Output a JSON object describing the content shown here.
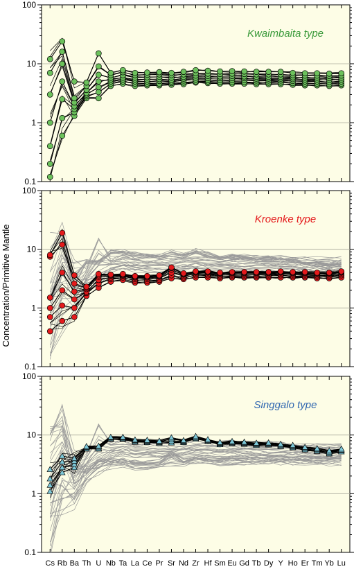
{
  "chart_data": {
    "type": "line",
    "ylabel": "Concentration/Primitive Mantle",
    "yscale": "log",
    "ylim": [
      0.1,
      100
    ],
    "ytick_labels": [
      "0.1",
      "1",
      "10",
      "100"
    ],
    "categories": [
      "Cs",
      "Rb",
      "Ba",
      "Th",
      "U",
      "Nb",
      "Ta",
      "La",
      "Ce",
      "Pr",
      "Sr",
      "Nd",
      "Zr",
      "Hf",
      "Sm",
      "Eu",
      "Gd",
      "Tb",
      "Dy",
      "Y",
      "Ho",
      "Er",
      "Tm",
      "Yb",
      "Lu"
    ],
    "background_color": "#fdfde6",
    "grid": "horizontal",
    "panels": [
      {
        "title": "Kwaimbaita type",
        "title_color": "#3a9a3a",
        "marker": "circle",
        "marker_color": "#6cc15c",
        "series": [
          {
            "values": [
              0.12,
              0.6,
              1.3,
              2.6,
              2.6,
              4.2,
              4.6,
              4.2,
              4.3,
              4.3,
              4.4,
              4.5,
              4.8,
              4.7,
              4.6,
              4.6,
              4.6,
              4.5,
              4.5,
              4.5,
              4.4,
              4.3,
              4.3,
              4.2,
              4.3
            ]
          },
          {
            "values": [
              0.2,
              1.2,
              1.5,
              2.8,
              3.3,
              4.6,
              5.0,
              4.6,
              4.6,
              4.6,
              4.7,
              4.8,
              5.0,
              5.0,
              4.9,
              4.9,
              4.9,
              4.8,
              4.8,
              4.8,
              4.7,
              4.6,
              4.6,
              4.5,
              4.6
            ]
          },
          {
            "values": [
              0.4,
              2.5,
              1.7,
              3.0,
              4.0,
              5.0,
              5.4,
              5.0,
              5.0,
              5.1,
              5.0,
              5.2,
              5.4,
              5.3,
              5.3,
              5.3,
              5.3,
              5.2,
              5.2,
              5.2,
              5.1,
              5.0,
              5.0,
              4.9,
              5.0
            ]
          },
          {
            "values": [
              1.0,
              5.0,
              1.9,
              3.2,
              5.0,
              5.4,
              5.8,
              5.4,
              5.4,
              5.5,
              5.3,
              5.6,
              5.8,
              5.7,
              5.7,
              5.7,
              5.7,
              5.6,
              5.6,
              5.6,
              5.5,
              5.4,
              5.4,
              5.3,
              5.4
            ]
          },
          {
            "values": [
              3.0,
              10.0,
              2.2,
              3.6,
              6.5,
              5.8,
              6.4,
              5.8,
              5.9,
              6.0,
              5.8,
              6.0,
              6.3,
              6.2,
              6.1,
              6.2,
              6.1,
              6.0,
              6.0,
              6.0,
              5.9,
              5.8,
              5.8,
              5.7,
              5.8
            ]
          },
          {
            "values": [
              7.0,
              16.0,
              2.6,
              4.2,
              9.0,
              6.4,
              7.2,
              6.4,
              6.5,
              6.6,
              6.4,
              6.6,
              6.9,
              6.8,
              6.7,
              6.8,
              6.7,
              6.6,
              6.6,
              6.6,
              6.4,
              6.3,
              6.3,
              6.2,
              6.3
            ]
          },
          {
            "values": [
              12.0,
              24.0,
              5.0,
              4.8,
              15.0,
              7.0,
              7.8,
              7.0,
              7.1,
              7.2,
              7.0,
              7.3,
              7.8,
              7.6,
              7.4,
              7.5,
              7.4,
              7.3,
              7.3,
              7.3,
              7.0,
              6.9,
              6.9,
              6.8,
              6.9
            ]
          }
        ]
      },
      {
        "title": "Kroenke type",
        "title_color": "#e41a1c",
        "marker": "circle",
        "marker_color": "#e41a1c",
        "series": [
          {
            "values": [
              0.4,
              0.6,
              0.7,
              1.6,
              2.2,
              2.8,
              3.0,
              2.7,
              2.7,
              2.8,
              3.2,
              3.1,
              3.3,
              3.3,
              3.2,
              3.3,
              3.3,
              3.3,
              3.3,
              3.3,
              3.3,
              3.3,
              3.2,
              3.2,
              3.3
            ]
          },
          {
            "values": [
              0.7,
              1.1,
              1.0,
              1.8,
              2.6,
              3.1,
              3.3,
              2.9,
              2.9,
              3.0,
              3.6,
              3.3,
              3.6,
              3.6,
              3.4,
              3.5,
              3.5,
              3.5,
              3.5,
              3.6,
              3.5,
              3.5,
              3.4,
              3.4,
              3.6
            ]
          },
          {
            "values": [
              1.0,
              2.0,
              1.4,
              1.9,
              3.0,
              3.3,
              3.5,
              3.1,
              3.1,
              3.2,
              4.0,
              3.5,
              3.8,
              3.8,
              3.6,
              3.7,
              3.7,
              3.7,
              3.7,
              3.8,
              3.7,
              3.7,
              3.6,
              3.6,
              3.8
            ]
          },
          {
            "values": [
              1.5,
              4.0,
              1.9,
              2.1,
              3.4,
              3.5,
              3.6,
              3.3,
              3.3,
              3.4,
              4.5,
              3.7,
              4.0,
              4.0,
              3.8,
              3.9,
              3.9,
              3.9,
              3.9,
              4.0,
              3.9,
              3.9,
              3.8,
              3.8,
              4.0
            ]
          },
          {
            "values": [
              7.5,
              12.0,
              2.6,
              2.2,
              3.6,
              3.6,
              3.7,
              3.4,
              3.4,
              3.5,
              4.8,
              3.8,
              4.1,
              4.1,
              3.9,
              4.0,
              4.0,
              4.0,
              4.0,
              4.1,
              4.0,
              4.0,
              3.9,
              3.9,
              4.1
            ]
          },
          {
            "values": [
              8.0,
              19.0,
              3.6,
              2.3,
              3.8,
              3.7,
              3.8,
              3.5,
              3.5,
              3.6,
              4.9,
              3.9,
              4.2,
              4.2,
              4.0,
              4.1,
              4.1,
              4.1,
              4.1,
              4.2,
              4.1,
              4.1,
              4.0,
              4.0,
              4.2
            ]
          }
        ]
      },
      {
        "title": "Singgalo type",
        "title_color": "#2f66b0",
        "marker": "triangle",
        "marker_color": "#7ec8d8",
        "series": [
          {
            "values": [
              1.1,
              2.3,
              2.8,
              5.8,
              5.8,
              8.5,
              8.5,
              7.6,
              7.5,
              7.3,
              7.4,
              7.5,
              8.6,
              7.8,
              6.9,
              7.2,
              7.0,
              6.7,
              6.8,
              6.4,
              6.1,
              5.6,
              5.3,
              4.8,
              5.2
            ]
          },
          {
            "values": [
              1.4,
              2.8,
              3.2,
              6.0,
              6.0,
              8.7,
              8.7,
              7.8,
              7.7,
              7.5,
              8.0,
              7.7,
              8.9,
              8.0,
              7.1,
              7.4,
              7.2,
              6.9,
              7.0,
              6.6,
              6.3,
              5.8,
              5.5,
              5.0,
              5.4
            ]
          },
          {
            "values": [
              1.8,
              3.5,
              3.6,
              6.2,
              6.3,
              9.0,
              9.0,
              8.1,
              8.0,
              7.7,
              8.6,
              7.9,
              9.2,
              8.2,
              7.3,
              7.6,
              7.4,
              7.1,
              7.2,
              6.8,
              6.5,
              6.0,
              5.7,
              5.2,
              5.6
            ]
          },
          {
            "values": [
              2.6,
              4.4,
              4.0,
              6.4,
              6.5,
              9.2,
              9.2,
              8.3,
              8.2,
              7.9,
              9.0,
              8.1,
              9.5,
              8.4,
              7.5,
              7.8,
              7.6,
              7.3,
              7.4,
              7.0,
              6.7,
              6.2,
              5.9,
              5.4,
              5.8
            ]
          }
        ]
      }
    ]
  }
}
